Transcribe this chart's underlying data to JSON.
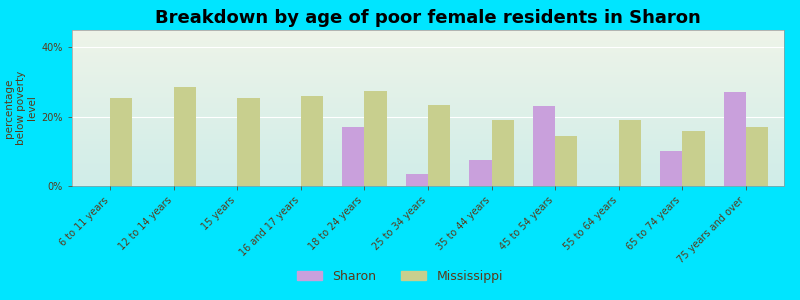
{
  "title": "Breakdown by age of poor female residents in Sharon",
  "ylabel": "percentage\nbelow poverty\nlevel",
  "categories": [
    "6 to 11 years",
    "12 to 14 years",
    "15 years",
    "16 and 17 years",
    "18 to 24 years",
    "25 to 34 years",
    "35 to 44 years",
    "45 to 54 years",
    "55 to 64 years",
    "65 to 74 years",
    "75 years and over"
  ],
  "sharon_values": [
    null,
    null,
    null,
    null,
    17.0,
    3.5,
    7.5,
    23.0,
    null,
    10.0,
    27.0
  ],
  "mississippi_values": [
    25.5,
    28.5,
    25.5,
    26.0,
    27.5,
    23.5,
    19.0,
    14.5,
    19.0,
    16.0,
    17.0
  ],
  "sharon_color": "#c9a0dc",
  "mississippi_color": "#c8cf8e",
  "background_color": "#00e5ff",
  "plot_bg_top": "#eef4e8",
  "plot_bg_bottom": "#d0ede8",
  "ylim": [
    0,
    45
  ],
  "yticks": [
    0,
    20,
    40
  ],
  "bar_width": 0.35,
  "title_fontsize": 13,
  "axis_label_fontsize": 7.5,
  "tick_fontsize": 7,
  "legend_fontsize": 9
}
